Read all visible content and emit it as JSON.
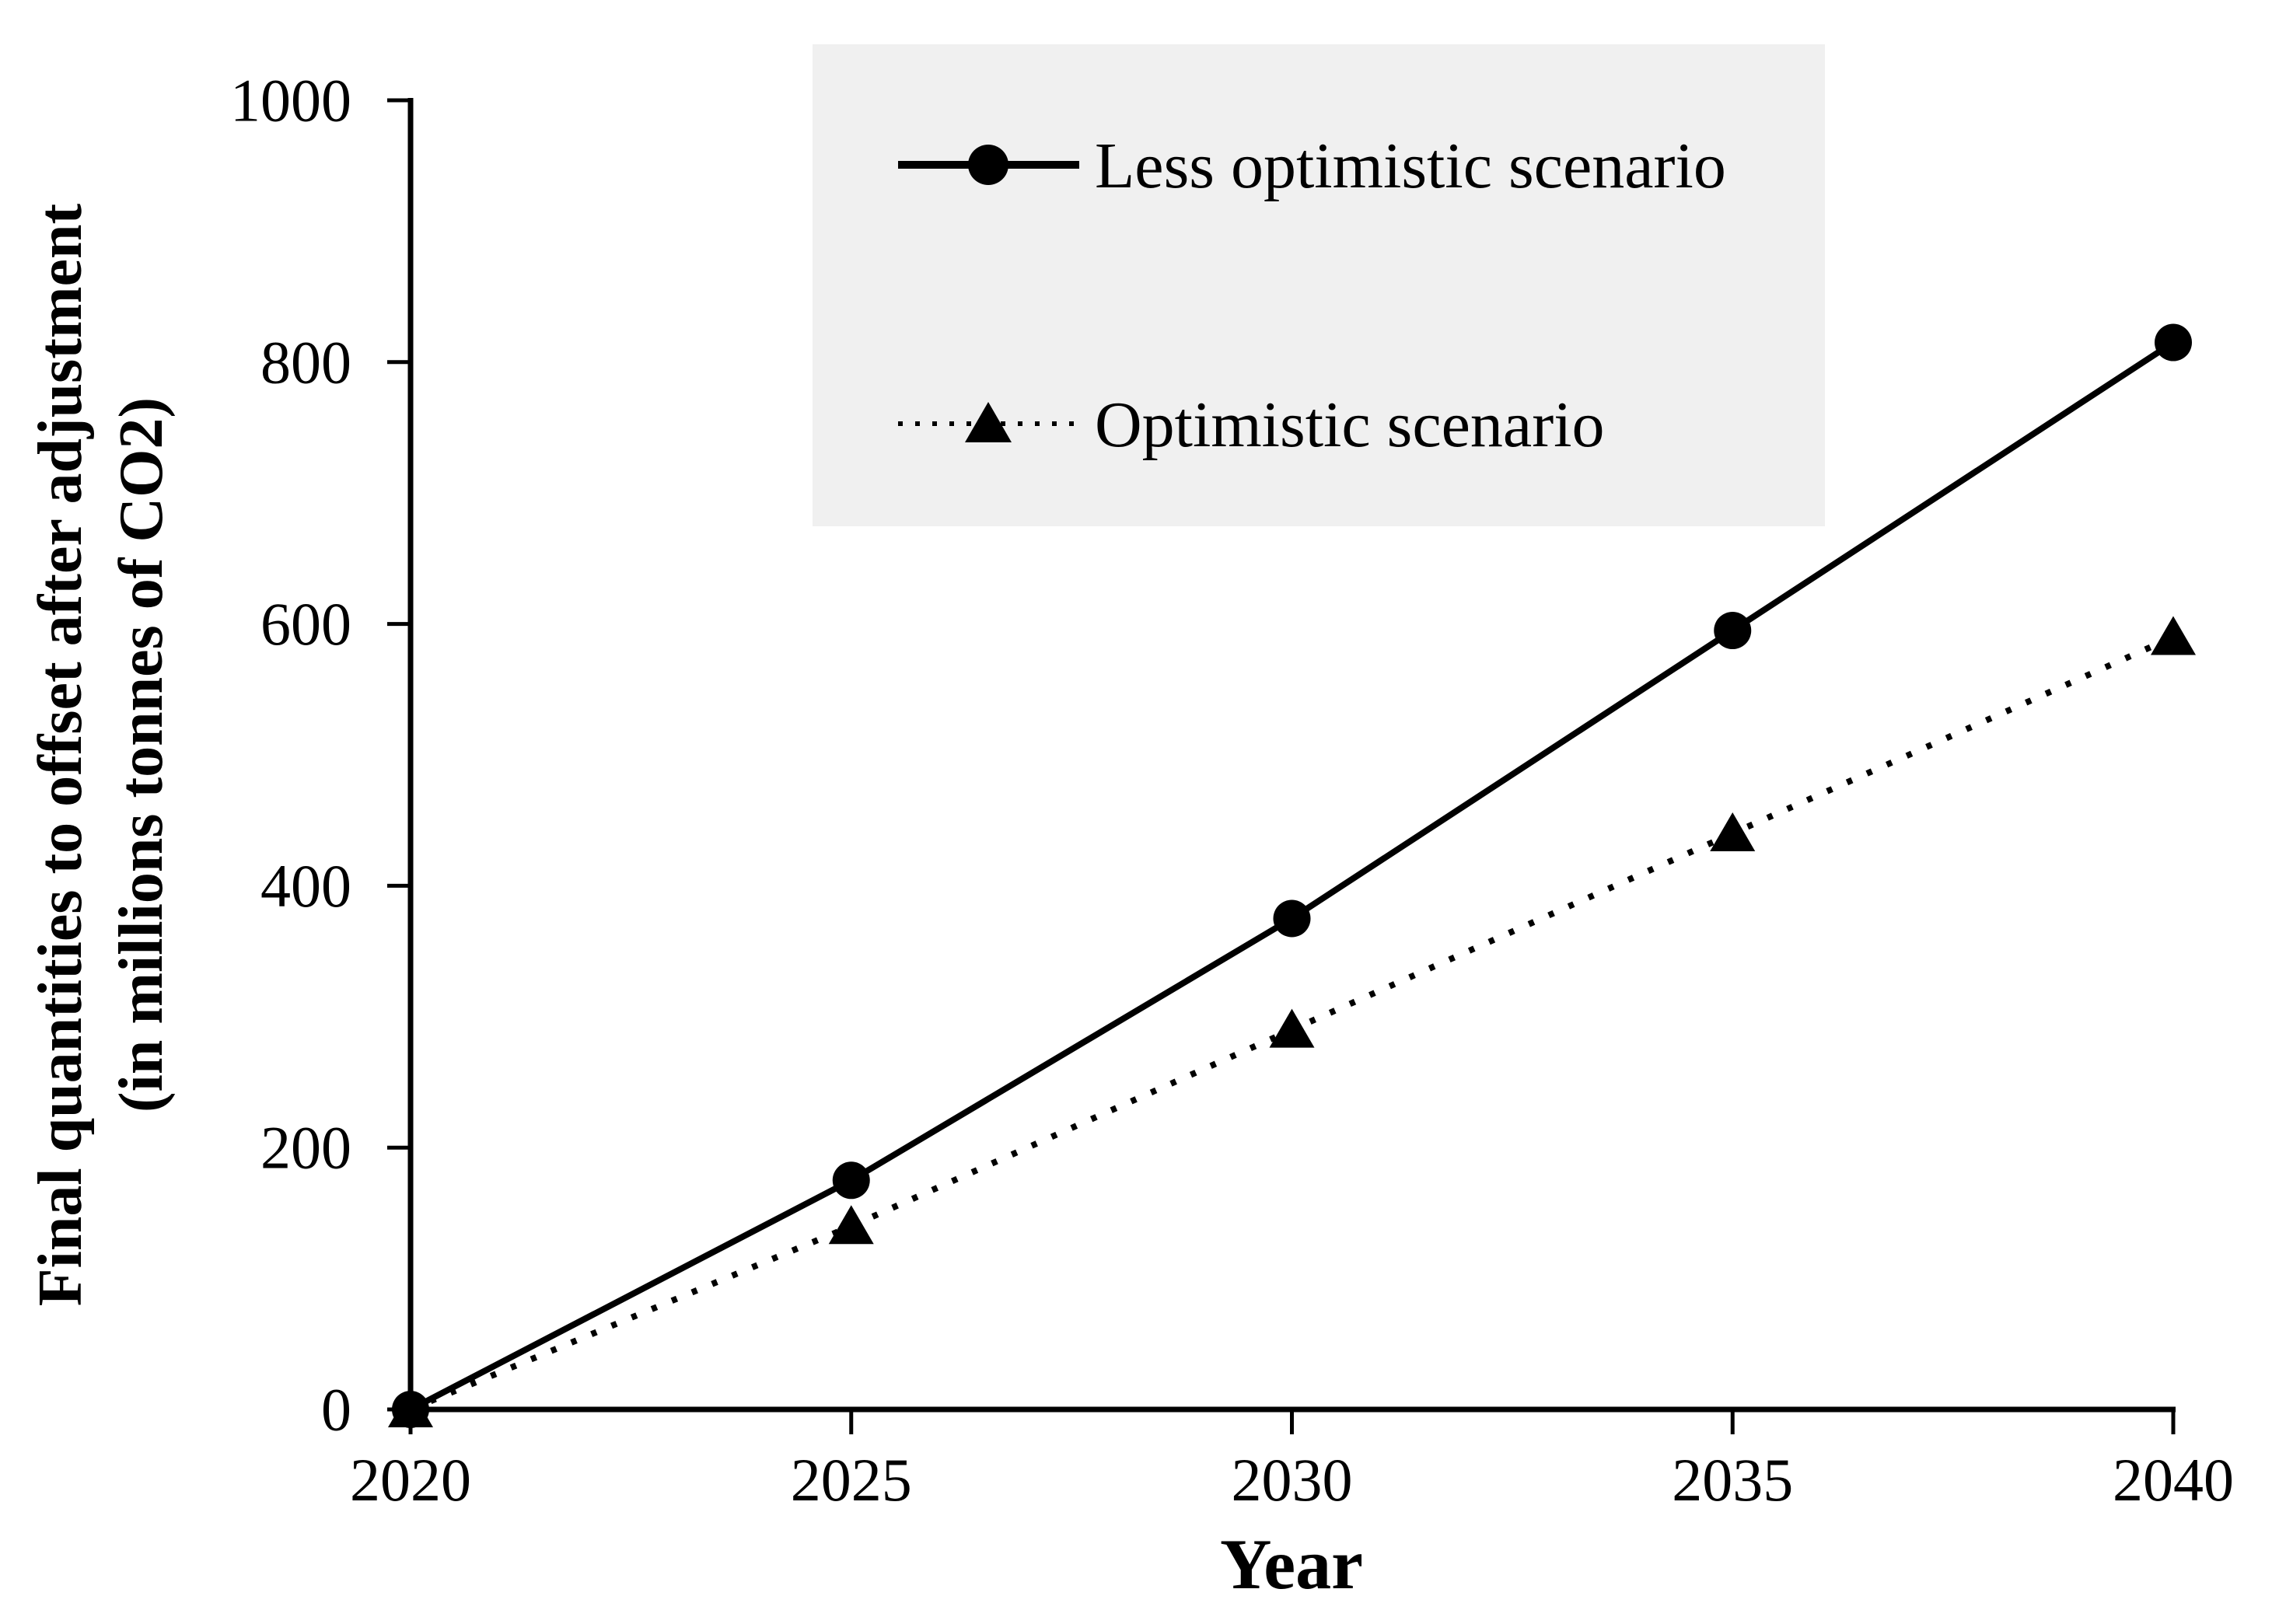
{
  "chart_data": {
    "type": "line",
    "title": "",
    "xlabel": "Year",
    "ylabel_line1": "Final quantities to offset after adjustment",
    "ylabel_line2": "(in millions tonnes of CO2)",
    "x": [
      2020,
      2025,
      2030,
      2035,
      2040
    ],
    "xticks": [
      "2020",
      "2025",
      "2030",
      "2035",
      "2040"
    ],
    "yticks": [
      0,
      200,
      400,
      600,
      800,
      1000
    ],
    "ytick_labels": [
      "0",
      "200",
      "400",
      "600",
      "800",
      "1000"
    ],
    "ylim": [
      0,
      1000
    ],
    "xlim": [
      2020,
      2040
    ],
    "grid": false,
    "legend_position": "top-center-inside",
    "series": [
      {
        "name": "Less optimistic scenario",
        "marker": "circle",
        "line_style": "solid",
        "color": "#000000",
        "values": [
          0,
          175,
          375,
          595,
          815
        ]
      },
      {
        "name": "Optimistic scenario",
        "marker": "triangle",
        "line_style": "dotted",
        "color": "#000000",
        "values": [
          0,
          140,
          290,
          440,
          590
        ]
      }
    ]
  },
  "colors": {
    "line": "#000000",
    "text": "#000000",
    "legend_background": "#f0f0f0",
    "background": "#ffffff"
  }
}
